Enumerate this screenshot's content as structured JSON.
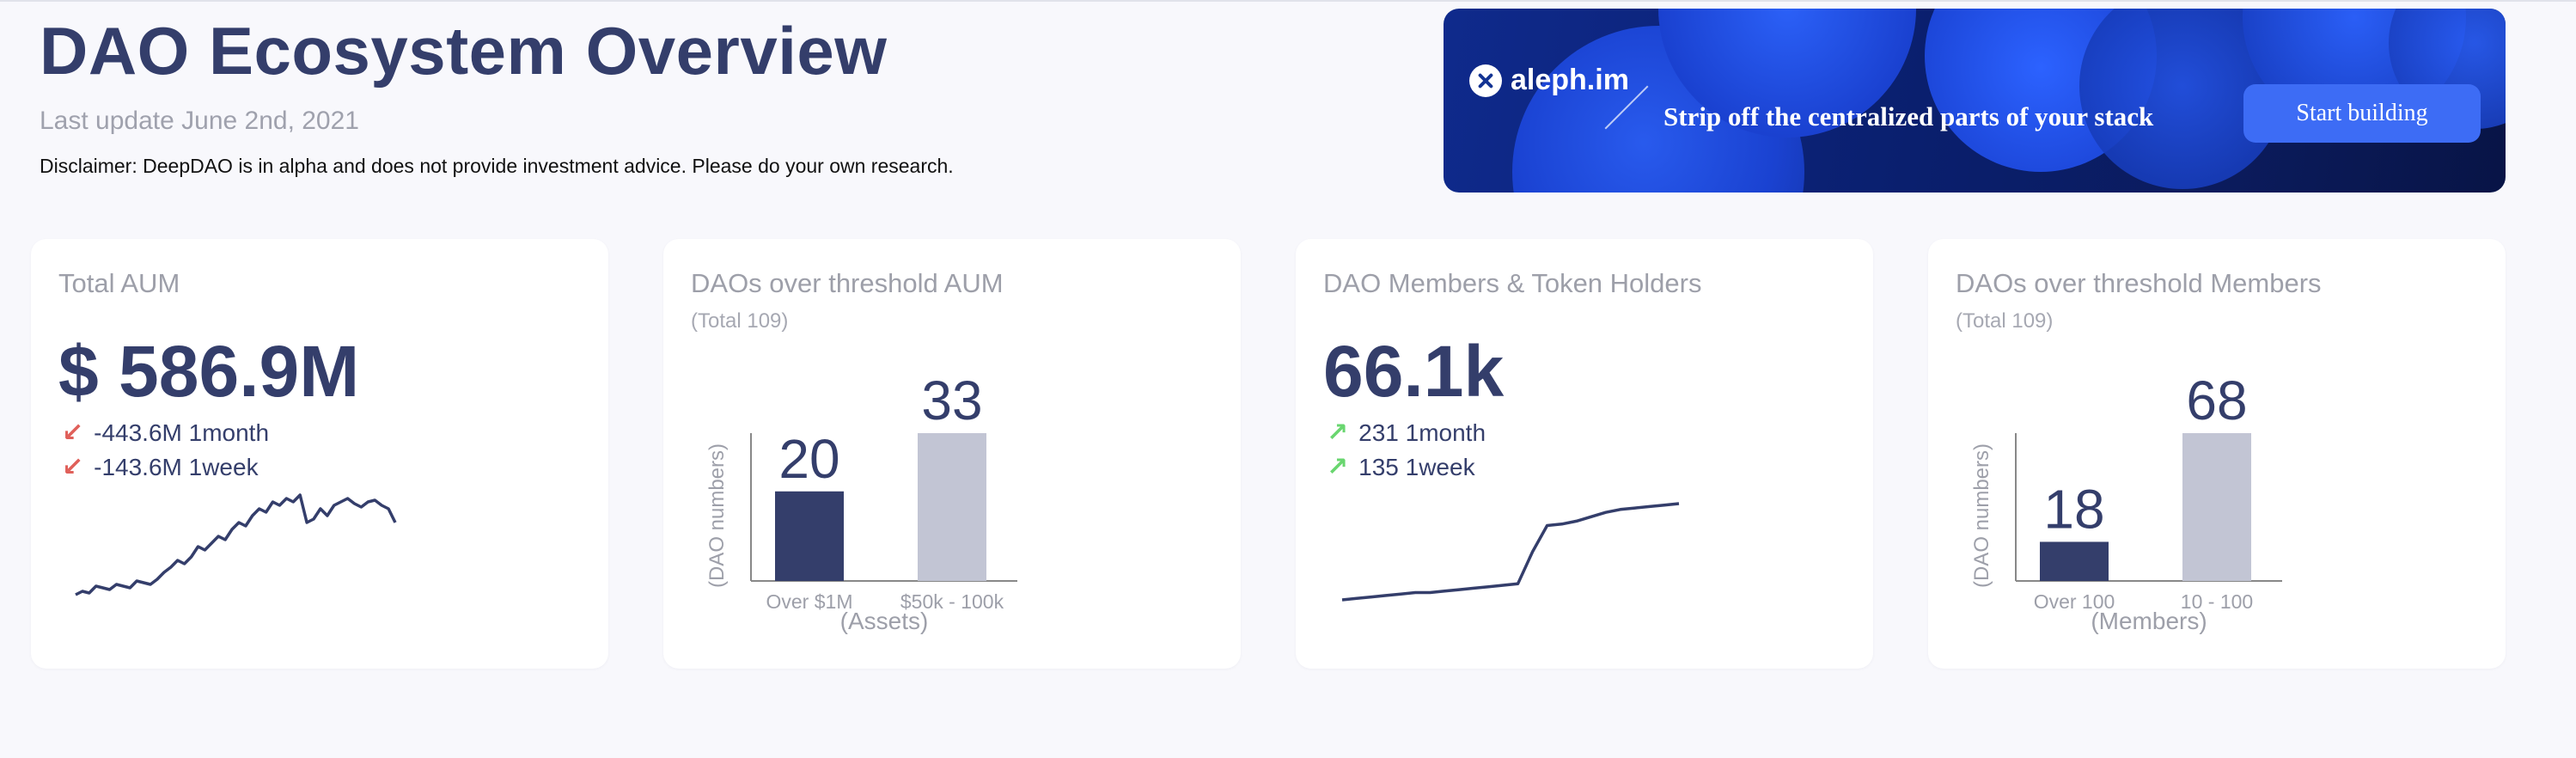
{
  "header": {
    "title": "DAO Ecosystem Overview",
    "last_update": "Last update June 2nd, 2021",
    "disclaimer": "Disclaimer: DeepDAO is in alpha and does not provide investment advice. Please do your own research."
  },
  "banner": {
    "logo_text": "aleph.im",
    "tagline": "Strip off the centralized parts of your stack",
    "button_label": "Start building"
  },
  "cards": {
    "aum": {
      "title": "Total AUM",
      "value": "$ 586.9M",
      "delta_month": "-443.6M 1month",
      "delta_week": "-143.6M 1week",
      "trend": "down"
    },
    "aum_threshold": {
      "title": "DAOs over threshold AUM",
      "subtitle": "(Total 109)"
    },
    "members": {
      "title": "DAO Members & Token Holders",
      "value": "66.1k",
      "delta_month": "231 1month",
      "delta_week": "135 1week",
      "trend": "up"
    },
    "members_threshold": {
      "title": "DAOs over threshold Members",
      "subtitle": "(Total 109)"
    }
  },
  "chart_data": [
    {
      "type": "bar",
      "categories": [
        "Over $1M",
        "$50k - 100k"
      ],
      "values": [
        20,
        33
      ],
      "colors": [
        "#343e6b",
        "#c2c5d4"
      ],
      "xlabel": "(Assets)",
      "ylabel": "(DAO numbers)"
    },
    {
      "type": "bar",
      "categories": [
        "Over 100",
        "10 - 100"
      ],
      "values": [
        18,
        68
      ],
      "colors": [
        "#343e6b",
        "#c2c5d4"
      ],
      "xlabel": "(Members)",
      "ylabel": "(DAO numbers)"
    },
    {
      "type": "line",
      "values": [
        20,
        22,
        21,
        25,
        24,
        23,
        26,
        25,
        24,
        28,
        27,
        26,
        29,
        33,
        36,
        40,
        38,
        42,
        48,
        46,
        50,
        54,
        52,
        58,
        62,
        60,
        66,
        70,
        68,
        74,
        72,
        76,
        74,
        78,
        62,
        64,
        70,
        66,
        72,
        74,
        76,
        73,
        71,
        74,
        75,
        72,
        70,
        62
      ],
      "ylabel": ""
    },
    {
      "type": "line",
      "values": [
        59.5,
        59.6,
        59.7,
        59.8,
        59.9,
        60.0,
        60.0,
        60.1,
        60.2,
        60.3,
        60.4,
        60.5,
        60.6,
        62.8,
        64.6,
        64.7,
        64.9,
        65.2,
        65.5,
        65.7,
        65.8,
        65.9,
        66.0,
        66.1
      ],
      "ylabel": ""
    }
  ],
  "colors": {
    "accent": "#343e6b",
    "muted_bar": "#c2c5d4",
    "negative": "#e0605a",
    "positive": "#69d66f",
    "banner_bg": "#0b1f70",
    "banner_button": "#3d6cf5"
  }
}
